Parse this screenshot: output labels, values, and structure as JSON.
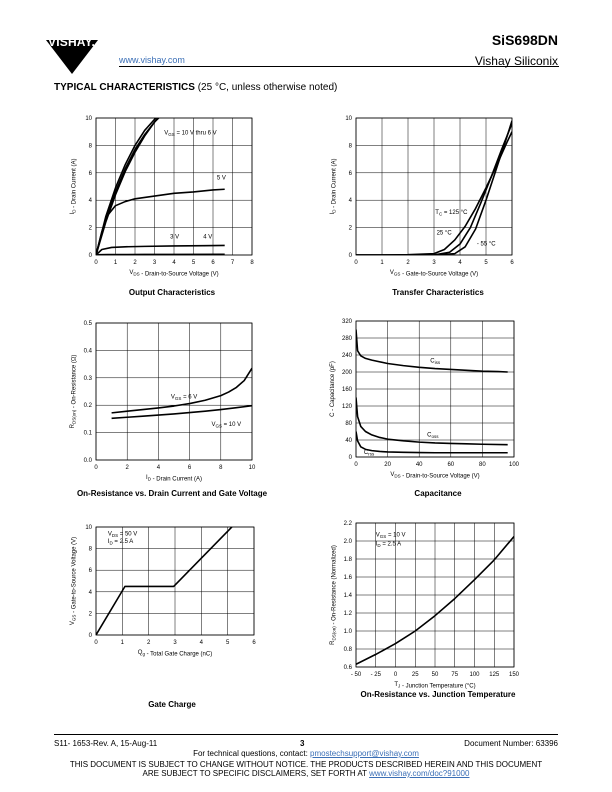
{
  "header": {
    "logo_text": "VISHAY.",
    "url": "www.vishay.com",
    "part_number": "SiS698DN",
    "company": "Vishay Siliconix"
  },
  "section": {
    "title": "TYPICAL CHARACTERISTICS",
    "note": " (25 °C, unless otherwise noted)"
  },
  "chart_data": [
    {
      "type": "line",
      "title": "Output Characteristics",
      "xlabel": "V_DS - Drain-to-Source Voltage (V)",
      "ylabel": "I_D - Drain Current (A)",
      "xlim": [
        0,
        8
      ],
      "ylim": [
        0,
        10
      ],
      "xticks": [
        0,
        1,
        2,
        3,
        4,
        5,
        6,
        7,
        8
      ],
      "yticks": [
        0,
        2,
        4,
        6,
        8,
        10
      ],
      "grid": true,
      "series": [
        {
          "name": "V_GS = 10 V thru 6 V",
          "x": [
            0,
            0.5,
            1,
            1.5,
            2,
            2.5,
            3,
            3.5,
            4
          ],
          "y": [
            0,
            2.8,
            4.9,
            6.6,
            8.0,
            9.1,
            9.9,
            10.6,
            11.3
          ]
        },
        {
          "name": "",
          "x": [
            0,
            0.5,
            1,
            1.5,
            2,
            2.5,
            3,
            3.5,
            4
          ],
          "y": [
            0,
            2.6,
            4.6,
            6.3,
            7.7,
            8.8,
            9.7,
            10.4,
            11.1
          ]
        },
        {
          "name": "",
          "x": [
            0,
            0.5,
            1,
            1.5,
            2,
            2.5,
            3,
            3.5
          ],
          "y": [
            0,
            2.4,
            4.4,
            6.1,
            7.5,
            8.7,
            9.7,
            10.6
          ]
        },
        {
          "name": "5 V",
          "x": [
            0,
            0.3,
            0.6,
            1,
            1.5,
            2,
            3,
            4,
            5,
            6,
            6.6
          ],
          "y": [
            0,
            1.7,
            2.9,
            3.6,
            3.9,
            4.1,
            4.3,
            4.5,
            4.6,
            4.75,
            4.8
          ]
        },
        {
          "name": "4 V",
          "x": [
            0,
            0.3,
            0.8,
            1.5,
            2.5,
            4,
            5.5,
            6.6
          ],
          "y": [
            0,
            0.4,
            0.55,
            0.6,
            0.63,
            0.66,
            0.68,
            0.7
          ]
        },
        {
          "name": "3 V",
          "x": [
            0,
            0.2,
            0.6,
            1.2,
            2.5,
            4,
            6.6
          ],
          "y": [
            0,
            0.02,
            0.03,
            0.03,
            0.04,
            0.04,
            0.05
          ]
        }
      ],
      "labels": [
        {
          "text": "V",
          "sub": "GS",
          "rest": " = 10 V thru 6 V",
          "x": 3.5,
          "y": 8.8
        },
        {
          "text": "5 V",
          "x": 6.2,
          "y": 5.5
        },
        {
          "text": "4 V",
          "x": 5.5,
          "y": 1.2
        },
        {
          "text": "3 V",
          "x": 3.8,
          "y": 1.2
        }
      ]
    },
    {
      "type": "line",
      "title": "Transfer Characteristics",
      "xlabel": "V_GS - Gate-to-Source Voltage (V)",
      "ylabel": "I_D - Drain Current (A)",
      "xlim": [
        0,
        6
      ],
      "ylim": [
        0,
        10
      ],
      "xticks": [
        0,
        1,
        2,
        3,
        4,
        5,
        6
      ],
      "yticks": [
        0,
        2,
        4,
        6,
        8,
        10
      ],
      "grid": true,
      "series": [
        {
          "name": "T_C = 125 °C",
          "x": [
            0,
            1,
            2,
            3,
            3.4,
            3.8,
            4.2,
            4.6,
            5,
            5.4,
            5.8,
            6
          ],
          "y": [
            0,
            0,
            0.02,
            0.1,
            0.4,
            1.1,
            2.1,
            3.4,
            4.9,
            6.5,
            8.2,
            9.0
          ]
        },
        {
          "name": "25 °C",
          "x": [
            0,
            2,
            3,
            3.6,
            4,
            4.4,
            4.8,
            5.2,
            5.6,
            6
          ],
          "y": [
            0,
            0,
            0.01,
            0.2,
            0.8,
            2.0,
            3.8,
            5.7,
            7.7,
            9.6
          ]
        },
        {
          "name": "- 55 °C",
          "x": [
            0,
            2,
            3,
            3.8,
            4.2,
            4.6,
            5,
            5.4,
            5.8,
            6
          ],
          "y": [
            0,
            0,
            0,
            0.1,
            0.6,
            1.9,
            4.0,
            6.3,
            8.6,
            9.8
          ]
        }
      ],
      "labels": [
        {
          "text": "T",
          "sub": "C",
          "rest": " = 125 °C",
          "x": 3.05,
          "y": 3.0
        },
        {
          "text": "25 °C",
          "x": 3.1,
          "y": 1.5
        },
        {
          "text": "- 55 °C",
          "x": 4.65,
          "y": 0.7
        }
      ]
    },
    {
      "type": "line",
      "title": "On-Resistance vs. Drain Current and Gate Voltage",
      "xlabel": "I_D - Drain Current (A)",
      "ylabel": "R_DS(on) - On-Resistance (Ω)",
      "xlim": [
        0,
        10
      ],
      "ylim": [
        0,
        0.5
      ],
      "xticks": [
        0,
        2,
        4,
        6,
        8,
        10
      ],
      "yticks": [
        0.0,
        0.1,
        0.2,
        0.3,
        0.4,
        0.5
      ],
      "ytick_labels": [
        "0.0",
        "0.1",
        "0.2",
        "0.3",
        "0.4",
        "0.5"
      ],
      "grid": true,
      "series": [
        {
          "name": "V_GS = 6 V",
          "x": [
            1,
            2,
            3,
            4,
            5,
            6,
            7,
            8,
            8.5,
            9,
            9.5,
            10
          ],
          "y": [
            0.172,
            0.178,
            0.184,
            0.19,
            0.197,
            0.206,
            0.218,
            0.235,
            0.248,
            0.265,
            0.29,
            0.335
          ]
        },
        {
          "name": "V_GS = 10 V",
          "x": [
            1,
            2,
            3,
            4,
            5,
            6,
            7,
            8,
            9,
            10
          ],
          "y": [
            0.152,
            0.156,
            0.16,
            0.164,
            0.168,
            0.173,
            0.178,
            0.184,
            0.191,
            0.198
          ]
        }
      ],
      "labels": [
        {
          "text": "V",
          "sub": "GS",
          "rest": " = 6 V",
          "x": 4.8,
          "y": 0.225
        },
        {
          "text": "V",
          "sub": "GS",
          "rest": " = 10 V",
          "x": 7.4,
          "y": 0.125
        }
      ]
    },
    {
      "type": "line",
      "title": "Capacitance",
      "xlabel": "V_DS - Drain-to-Source Voltage (V)",
      "ylabel": "C - Capacitance (pF)",
      "xlim": [
        0,
        100
      ],
      "ylim": [
        0,
        320
      ],
      "xticks": [
        0,
        20,
        40,
        60,
        80,
        100
      ],
      "yticks": [
        0,
        40,
        80,
        120,
        160,
        200,
        240,
        280,
        320
      ],
      "grid": true,
      "series": [
        {
          "name": "C_iss",
          "x": [
            0,
            1,
            3,
            6,
            10,
            20,
            30,
            40,
            50,
            60,
            70,
            80,
            90,
            96
          ],
          "y": [
            300,
            250,
            238,
            232,
            228,
            220,
            215,
            211,
            208,
            206,
            204,
            202,
            201,
            200
          ]
        },
        {
          "name": "C_oss",
          "x": [
            0,
            1,
            3,
            6,
            10,
            15,
            20,
            30,
            40,
            50,
            60,
            70,
            80,
            96
          ],
          "y": [
            140,
            95,
            72,
            60,
            52,
            46,
            42,
            38,
            35,
            33,
            32,
            31,
            30,
            29
          ]
        },
        {
          "name": "C_rss",
          "x": [
            0,
            1,
            3,
            6,
            10,
            15,
            20,
            30,
            40,
            50,
            60,
            70,
            80,
            96
          ],
          "y": [
            60,
            38,
            24,
            18,
            15,
            13,
            12,
            11,
            10.5,
            10,
            10,
            10,
            10,
            10
          ]
        }
      ],
      "labels": [
        {
          "text": "C",
          "sub": "iss",
          "x": 47,
          "y": 222
        },
        {
          "text": "C",
          "sub": "oss",
          "x": 45,
          "y": 48
        },
        {
          "text": "C",
          "sub": "rss",
          "x": 5,
          "y": 7
        }
      ]
    },
    {
      "type": "line",
      "title": "Gate Charge",
      "xlabel": "Q_g - Total Gate Charge (nC)",
      "ylabel": "V_GS - Gate-to-Source Voltage (V)",
      "xlim": [
        0,
        6
      ],
      "ylim": [
        0,
        10
      ],
      "xticks": [
        0,
        1,
        2,
        3,
        4,
        5,
        6
      ],
      "yticks": [
        0,
        2,
        4,
        6,
        8,
        10
      ],
      "grid": true,
      "series": [
        {
          "name": "V_DS = 50 V, I_D = 2.5 A",
          "x": [
            0,
            1.1,
            2.95,
            5.4
          ],
          "y": [
            0,
            4.5,
            4.5,
            10.6
          ]
        }
      ],
      "labels": [
        {
          "text": "V",
          "sub": "DS",
          "rest": " = 50 V",
          "x": 0.45,
          "y": 9.2
        },
        {
          "text": "I",
          "sub": "D",
          "rest": " = 2.5 A",
          "x": 0.45,
          "y": 8.5
        }
      ]
    },
    {
      "type": "line",
      "title": "On-Resistance vs. Junction Temperature",
      "xlabel": "T_J - Junction Temperature (°C)",
      "ylabel": "R_DS(on) - On-Resistance (Normalized)",
      "xlim": [
        -50,
        150
      ],
      "ylim": [
        0.6,
        2.2
      ],
      "xticks": [
        -50,
        -25,
        0,
        25,
        50,
        75,
        100,
        125,
        150
      ],
      "xtick_labels": [
        "- 50",
        "- 25",
        "0",
        "25",
        "50",
        "75",
        "100",
        "125",
        "150"
      ],
      "yticks": [
        0.6,
        0.8,
        1.0,
        1.2,
        1.4,
        1.6,
        1.8,
        2.0,
        2.2
      ],
      "ytick_labels": [
        "0.6",
        "0.8",
        "1.0",
        "1.2",
        "1.4",
        "1.6",
        "1.8",
        "2.0",
        "2.2"
      ],
      "grid": true,
      "series": [
        {
          "name": "V_GS = 10 V, I_D = 2.5 A",
          "x": [
            -50,
            -25,
            0,
            25,
            50,
            75,
            100,
            125,
            150
          ],
          "y": [
            0.63,
            0.74,
            0.86,
            1.0,
            1.17,
            1.36,
            1.57,
            1.79,
            2.05
          ]
        }
      ],
      "labels": [
        {
          "text": "V",
          "sub": "GS",
          "rest": " = 10 V",
          "x": -25,
          "y": 2.05
        },
        {
          "text": "I",
          "sub": "D",
          "rest": " = 2.5 A",
          "x": -25,
          "y": 1.95
        }
      ]
    }
  ],
  "footer": {
    "doc_rev": "S11- 1653-Rev. A, 15-Aug-11",
    "page": "3",
    "doc_number": "Document Number: 63396",
    "contact_text": "For technical questions, contact: ",
    "contact_email": "pmostechsupport@vishay.com",
    "disclaimer_1": "THIS DOCUMENT IS SUBJECT TO CHANGE WITHOUT NOTICE. THE PRODUCTS DESCRIBED HEREIN AND THIS DOCUMENT",
    "disclaimer_2": "ARE SUBJECT TO SPECIFIC DISCLAIMERS, SET FORTH AT ",
    "disclaimer_link": "www.vishay.com/doc?91000"
  },
  "colors": {
    "link": "#3b6fb6",
    "ink": "#000000"
  }
}
